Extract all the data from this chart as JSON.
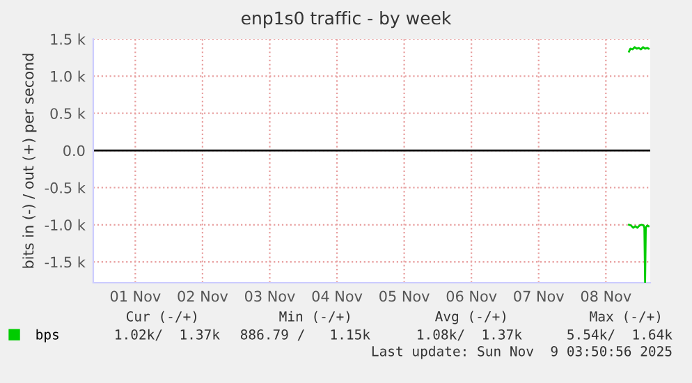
{
  "chart_data": {
    "type": "line",
    "title": "enp1s0 traffic - by week",
    "ylabel": "bits in (-) / out (+) per second",
    "xlim": [
      "2025-10-31T21:00",
      "2025-11-09T03:50"
    ],
    "xticks": [
      {
        "value": "2025-11-01T12:00",
        "label": "01 Nov"
      },
      {
        "value": "2025-11-02T12:00",
        "label": "02 Nov"
      },
      {
        "value": "2025-11-03T12:00",
        "label": "03 Nov"
      },
      {
        "value": "2025-11-04T12:00",
        "label": "04 Nov"
      },
      {
        "value": "2025-11-05T12:00",
        "label": "05 Nov"
      },
      {
        "value": "2025-11-06T12:00",
        "label": "06 Nov"
      },
      {
        "value": "2025-11-07T12:00",
        "label": "07 Nov"
      },
      {
        "value": "2025-11-08T12:00",
        "label": "08 Nov"
      }
    ],
    "ylim": [
      -1780,
      1500
    ],
    "yticks": [
      {
        "value": -1500,
        "label": "-1.5 k"
      },
      {
        "value": -1000,
        "label": "-1.0 k"
      },
      {
        "value": -500,
        "label": "-0.5 k"
      },
      {
        "value": 0,
        "label": "0.0"
      },
      {
        "value": 500,
        "label": "0.5 k"
      },
      {
        "value": 1000,
        "label": "1.0 k"
      },
      {
        "value": 1500,
        "label": "1.5 k"
      }
    ],
    "grid": true,
    "legend": "bottom",
    "marker": "none",
    "line_style": "solid",
    "ref_lines": [
      {
        "axis": "y",
        "value": 0,
        "color": "#000000"
      }
    ],
    "series": [
      {
        "name": "bps",
        "color": "#00cc00",
        "x": [
          "2025-11-08T20:15",
          "2025-11-08T20:45",
          "2025-11-08T21:30",
          "2025-11-08T22:15",
          "2025-11-08T23:00",
          "2025-11-08T23:45",
          "2025-11-09T00:30",
          "2025-11-09T01:15",
          "2025-11-09T02:00",
          "2025-11-09T02:45",
          "2025-11-09T03:15"
        ],
        "values": [
          1330,
          1370,
          1360,
          1390,
          1370,
          1380,
          1360,
          1390,
          1370,
          1380,
          1370
        ]
      },
      {
        "color": "#00cc00",
        "x": [
          "2025-11-08T20:15",
          "2025-11-08T21:00",
          "2025-11-08T21:45",
          "2025-11-08T22:30",
          "2025-11-08T23:15",
          "2025-11-09T00:00",
          "2025-11-09T00:45",
          "2025-11-09T01:30",
          "2025-11-09T01:45",
          "2025-11-09T02:00",
          "2025-11-09T02:15",
          "2025-11-09T02:45",
          "2025-11-09T03:15"
        ],
        "values": [
          -1000,
          -1010,
          -1040,
          -1020,
          -1040,
          -1010,
          -1000,
          -1010,
          -1040,
          -1780,
          -1040,
          -1010,
          -1020
        ]
      }
    ],
    "annotations": [
      "Cur (-/+)",
      "Min (-/+)",
      "Avg (-/+)",
      "Max (-/+)",
      "1.02k/  1.37k",
      "886.79 /   1.15k",
      "1.08k/  1.37k",
      "5.54k/  1.64k",
      "Last update: Sun Nov  9 03:50:56 2025"
    ]
  }
}
